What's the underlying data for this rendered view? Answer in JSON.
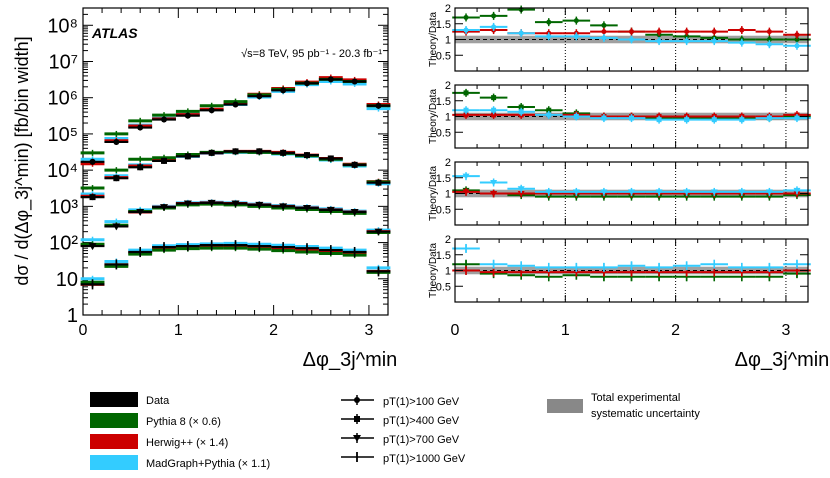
{
  "chart_data": [
    {
      "type": "scatter",
      "title": "ATLAS",
      "annotation": "√s=8 TeV, 95 pb⁻¹ - 20.3 fb⁻¹",
      "xlabel": "Δφ_3j^min",
      "ylabel": "dσ / d(Δφ_3j^min) [fb/bin width]",
      "xlim": [
        0,
        3.2
      ],
      "ylim": [
        1,
        300000000
      ],
      "yscale": "log",
      "x_ticks": [
        "0",
        "1",
        "2",
        "3"
      ],
      "y_ticks": [
        "1",
        "10",
        "10²",
        "10³",
        "10⁴",
        "10⁵",
        "10⁶",
        "10⁷",
        "10⁸"
      ],
      "x": [
        0.1,
        0.35,
        0.6,
        0.85,
        1.1,
        1.35,
        1.6,
        1.85,
        2.1,
        2.35,
        2.6,
        2.85,
        3.1
      ],
      "series": [
        {
          "name": "Data pT(1)>100 GeV",
          "marker": "circle",
          "values": [
            17000,
            60000,
            150000,
            250000,
            320000,
            450000,
            650000,
            1100000,
            1600000,
            2500000,
            3200000,
            2800000,
            600000
          ]
        },
        {
          "name": "Pythia 8 pT(1)>100 GeV",
          "marker": "circle",
          "values": [
            30000,
            100000,
            230000,
            330000,
            420000,
            600000,
            780000,
            1200000,
            1700000,
            2500000,
            3200000,
            2800000,
            600000
          ]
        },
        {
          "name": "Herwig++ pT(1)>100 GeV",
          "marker": "circle",
          "values": [
            15000,
            65000,
            165000,
            260000,
            340000,
            480000,
            720000,
            1250000,
            1800000,
            2700000,
            3600000,
            3100000,
            650000
          ]
        },
        {
          "name": "MadGraph+Pythia pT(1)>100 GeV",
          "marker": "circle",
          "values": [
            20000,
            75000,
            175000,
            270000,
            350000,
            470000,
            650000,
            1050000,
            1500000,
            2300000,
            2800000,
            2400000,
            500000
          ]
        },
        {
          "name": "Data pT(1)>400 GeV",
          "marker": "square",
          "values": [
            1800,
            6000,
            12000,
            18000,
            24000,
            30000,
            33000,
            33000,
            30000,
            26000,
            21000,
            14000,
            4500
          ]
        },
        {
          "name": "Pythia 8 pT(1)>400 GeV",
          "marker": "square",
          "values": [
            3200,
            10000,
            20000,
            22000,
            27000,
            31000,
            32000,
            31000,
            29000,
            25000,
            20000,
            14000,
            4700
          ]
        },
        {
          "name": "Herwig++ pT(1)>400 GeV",
          "marker": "square",
          "values": [
            1900,
            6200,
            13000,
            19000,
            25000,
            30000,
            33000,
            33000,
            31000,
            26000,
            21000,
            14500,
            4800
          ]
        },
        {
          "name": "MadGraph+Pythia pT(1)>400 GeV",
          "marker": "square",
          "values": [
            2200,
            7000,
            14000,
            19000,
            24000,
            29000,
            31000,
            31000,
            28000,
            24000,
            19000,
            13000,
            4200
          ]
        },
        {
          "name": "Data pT(1)>700 GeV",
          "marker": "triangle-down",
          "values": [
            80,
            280,
            700,
            950,
            1200,
            1250,
            1200,
            1100,
            1000,
            900,
            800,
            700,
            200
          ]
        },
        {
          "name": "Pythia 8 pT(1)>700 GeV",
          "marker": "triangle-down",
          "values": [
            90,
            300,
            720,
            900,
            1100,
            1150,
            1100,
            1000,
            900,
            820,
            720,
            640,
            190
          ]
        },
        {
          "name": "Herwig++ pT(1)>700 GeV",
          "marker": "triangle-down",
          "values": [
            85,
            290,
            700,
            950,
            1200,
            1250,
            1200,
            1100,
            1000,
            900,
            800,
            700,
            200
          ]
        },
        {
          "name": "MadGraph+Pythia pT(1)>700 GeV",
          "marker": "triangle-down",
          "values": [
            120,
            380,
            800,
            1000,
            1250,
            1300,
            1250,
            1150,
            1050,
            950,
            850,
            740,
            220
          ]
        },
        {
          "name": "Data pT(1)>1000 GeV",
          "marker": "cross",
          "values": [
            7,
            25,
            55,
            75,
            80,
            85,
            85,
            80,
            75,
            70,
            62,
            55,
            16
          ]
        },
        {
          "name": "Pythia 8 pT(1)>1000 GeV",
          "marker": "cross",
          "values": [
            8,
            22,
            48,
            62,
            68,
            70,
            70,
            66,
            60,
            55,
            50,
            45,
            15
          ]
        },
        {
          "name": "Herwig++ pT(1)>1000 GeV",
          "marker": "cross",
          "values": [
            7,
            24,
            52,
            70,
            76,
            80,
            80,
            76,
            70,
            65,
            58,
            52,
            16
          ]
        },
        {
          "name": "MadGraph+Pythia pT(1)>1000 GeV",
          "marker": "cross",
          "values": [
            10,
            30,
            62,
            82,
            88,
            92,
            95,
            90,
            84,
            78,
            70,
            62,
            20
          ]
        }
      ]
    },
    {
      "type": "scatter",
      "ylabel": "Theory/Data",
      "xlabel": "Δφ_3j^min",
      "xlim": [
        0,
        3.2
      ],
      "x_ticks": [
        "0",
        "1",
        "2",
        "3"
      ],
      "panels": [
        {
          "label": "pT(1)>100 GeV",
          "ylim": [
            0,
            2
          ],
          "y_ticks": [
            "0.5",
            "1",
            "1.5",
            "2"
          ],
          "series": [
            {
              "name": "Pythia 8",
              "values": [
                1.7,
                1.75,
                1.95,
                1.55,
                1.6,
                1.45,
                1.25,
                1.15,
                1.1,
                1.05,
                1.0,
                1.0,
                1.0
              ]
            },
            {
              "name": "Herwig++",
              "values": [
                1.25,
                1.3,
                1.2,
                1.2,
                1.2,
                1.25,
                1.25,
                1.25,
                1.25,
                1.25,
                1.3,
                1.25,
                1.15
              ]
            },
            {
              "name": "MadGraph+Pythia",
              "values": [
                1.3,
                1.4,
                1.2,
                1.1,
                1.1,
                1.05,
                1.0,
                0.95,
                0.95,
                0.95,
                0.9,
                0.85,
                0.8
              ]
            }
          ]
        },
        {
          "label": "pT(1)>400 GeV",
          "ylim": [
            0,
            2
          ],
          "y_ticks": [
            "0.5",
            "1",
            "1.5",
            "2"
          ],
          "series": [
            {
              "name": "Pythia 8",
              "values": [
                1.75,
                1.6,
                1.3,
                1.2,
                1.1,
                1.0,
                1.0,
                0.95,
                0.95,
                0.95,
                0.95,
                0.95,
                1.0
              ]
            },
            {
              "name": "Herwig++",
              "values": [
                1.05,
                1.05,
                1.05,
                1.05,
                1.05,
                1.0,
                1.0,
                1.0,
                1.0,
                1.0,
                1.0,
                1.0,
                1.05
              ]
            },
            {
              "name": "MadGraph+Pythia",
              "values": [
                1.2,
                1.2,
                1.15,
                1.05,
                1.0,
                0.95,
                0.95,
                0.9,
                0.9,
                0.9,
                0.9,
                0.95,
                0.95
              ]
            }
          ]
        },
        {
          "label": "pT(1)>700 GeV",
          "ylim": [
            0,
            2
          ],
          "y_ticks": [
            "0.5",
            "1",
            "1.5",
            "2"
          ],
          "series": [
            {
              "name": "Pythia 8",
              "values": [
                1.1,
                1.0,
                0.95,
                0.9,
                0.9,
                0.9,
                0.9,
                0.9,
                0.9,
                0.9,
                0.9,
                0.9,
                0.95
              ]
            },
            {
              "name": "Herwig++",
              "values": [
                1.05,
                1.0,
                1.0,
                1.0,
                1.0,
                1.0,
                1.0,
                1.0,
                1.0,
                1.0,
                1.0,
                1.0,
                1.0
              ]
            },
            {
              "name": "MadGraph+Pythia",
              "values": [
                1.55,
                1.35,
                1.15,
                1.05,
                1.05,
                1.05,
                1.05,
                1.05,
                1.05,
                1.05,
                1.05,
                1.05,
                1.1
              ]
            }
          ]
        },
        {
          "label": "pT(1)>1000 GeV",
          "ylim": [
            0,
            2
          ],
          "y_ticks": [
            "0.5",
            "1",
            "1.5",
            "2"
          ],
          "series": [
            {
              "name": "Pythia 8",
              "values": [
                1.2,
                0.9,
                0.85,
                0.8,
                0.85,
                0.8,
                0.8,
                0.8,
                0.8,
                0.8,
                0.8,
                0.8,
                0.9
              ]
            },
            {
              "name": "Herwig++",
              "values": [
                1.0,
                0.95,
                0.95,
                0.95,
                0.95,
                0.95,
                0.95,
                0.95,
                0.95,
                0.95,
                0.95,
                0.95,
                1.0
              ]
            },
            {
              "name": "MadGraph+Pythia",
              "values": [
                1.7,
                1.2,
                1.15,
                1.1,
                1.1,
                1.1,
                1.15,
                1.1,
                1.15,
                1.2,
                1.1,
                1.1,
                1.2
              ]
            }
          ]
        }
      ],
      "uncertainty_band": {
        "label": "Total experimental systematic uncertainty",
        "lower": 0.88,
        "upper": 1.12
      }
    }
  ],
  "legend": {
    "samples": [
      {
        "label": "Data",
        "color": "#000000"
      },
      {
        "label": "Pythia 8 (× 0.6)",
        "color": "#006600"
      },
      {
        "label": "Herwig++ (× 1.4)",
        "color": "#cc0000"
      },
      {
        "label": "MadGraph+Pythia (× 1.1)",
        "color": "#33ccff"
      }
    ],
    "markers": [
      {
        "marker": "circle",
        "label": "pT(1)>100 GeV"
      },
      {
        "marker": "square",
        "label": "pT(1)>400 GeV"
      },
      {
        "marker": "triangle-down",
        "label": "pT(1)>700 GeV"
      },
      {
        "marker": "cross",
        "label": "pT(1)>1000 GeV"
      }
    ],
    "band": {
      "label_line1": "Total experimental",
      "label_line2": "systematic uncertainty",
      "color": "#888888"
    }
  },
  "colors": {
    "data": "#000000",
    "pythia": "#006600",
    "herwig": "#cc0000",
    "madgraph": "#33ccff",
    "band": "#888888"
  }
}
